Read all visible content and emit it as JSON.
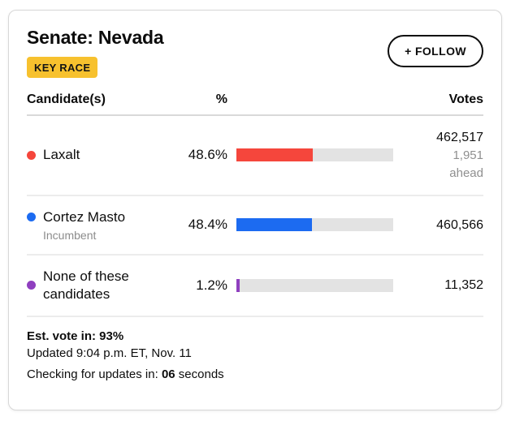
{
  "header": {
    "title": "Senate: Nevada",
    "badge": "KEY RACE",
    "follow_label": "+ FOLLOW"
  },
  "table": {
    "col_candidates": "Candidate(s)",
    "col_pct": "%",
    "col_votes": "Votes"
  },
  "candidates": [
    {
      "name": "Laxalt",
      "subtitle": "",
      "pct_label": "48.6%",
      "pct": 48.6,
      "votes": "462,517",
      "margin": "1,951",
      "margin_suffix": "ahead",
      "color": "#f5463c"
    },
    {
      "name": "Cortez Masto",
      "subtitle": "Incumbent",
      "pct_label": "48.4%",
      "pct": 48.4,
      "votes": "460,566",
      "margin": "",
      "margin_suffix": "",
      "color": "#1c6bf1"
    },
    {
      "name": "None of these candidates",
      "subtitle": "",
      "pct_label": "1.2%",
      "pct": 1.2,
      "votes": "11,352",
      "margin": "",
      "margin_suffix": "",
      "color": "#8f3fbf"
    }
  ],
  "footer": {
    "est_label": "Est. vote in: 93%",
    "updated": "Updated 9:04 p.m. ET, Nov. 11",
    "checking_prefix": "Checking for updates in: ",
    "checking_value": "06",
    "checking_suffix": " seconds"
  },
  "colors": {
    "badge_bg": "#f7c12e",
    "bar_track": "#e3e3e3",
    "laxalt_red": "#f5463c",
    "masto_blue": "#1c6bf1",
    "none_purple": "#8f3fbf",
    "muted_text": "#8f8f8f"
  },
  "chart_data": {
    "type": "bar",
    "title": "Senate: Nevada",
    "categories": [
      "Laxalt",
      "Cortez Masto",
      "None of these candidates"
    ],
    "series": [
      {
        "name": "Percent of vote",
        "values": [
          48.6,
          48.4,
          1.2
        ]
      },
      {
        "name": "Votes",
        "values": [
          462517,
          460566,
          11352
        ]
      }
    ],
    "xlabel": "%",
    "ylabel": "Candidate(s)",
    "xlim": [
      0,
      100
    ],
    "annotations": [
      "Laxalt 1,951 ahead",
      "Cortez Masto Incumbent",
      "Est. vote in: 93%"
    ],
    "legend_position": "none",
    "grid": false
  }
}
